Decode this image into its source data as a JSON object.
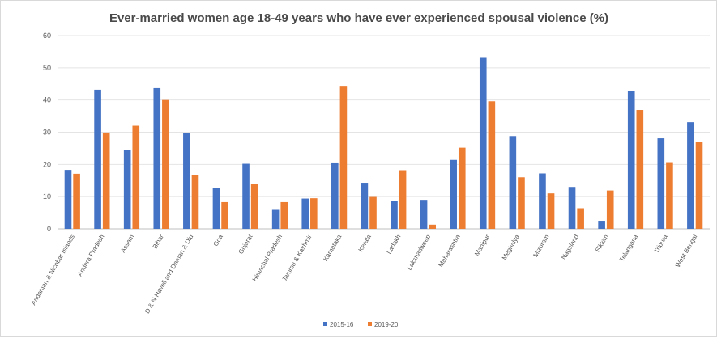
{
  "chart_data": {
    "type": "bar",
    "title": "Ever-married  women age 18-49 years who have ever experienced spousal  violence  (%)",
    "xlabel": "",
    "ylabel": "",
    "ylim": [
      0,
      60
    ],
    "yticks": [
      "0",
      "10",
      "20",
      "30",
      "40",
      "50",
      "60"
    ],
    "grid": true,
    "legend_position": "bottom",
    "categories": [
      "Andaman & Nicobar Islands",
      "Andhra Pradesh",
      "Assam",
      "Bihar",
      "D & N Haveli and Daman & Diu",
      "Goa",
      "Gujarat",
      "Himachal Pradesh",
      "Jammu & Kashmir",
      "Karnataka",
      "Kerala",
      "Ladakh",
      "Lakshadweep",
      "Maharashtra",
      "Manipur",
      "Meghalya",
      "Mizoram",
      "Nagaland",
      "Sikkim",
      "Telangana",
      "Tripura",
      "West Bengal"
    ],
    "series": [
      {
        "name": "2015-16",
        "color": "#4472c4",
        "values": [
          18.3,
          43.2,
          24.5,
          43.7,
          29.8,
          12.8,
          20.2,
          5.9,
          9.4,
          20.6,
          14.3,
          8.6,
          9.0,
          21.4,
          53.1,
          28.8,
          17.2,
          13.0,
          2.5,
          42.9,
          28.1,
          33.1
        ]
      },
      {
        "name": "2019-20",
        "color": "#ed7d31",
        "values": [
          17.1,
          29.9,
          32.0,
          40.0,
          16.7,
          8.3,
          14.0,
          8.3,
          9.5,
          44.4,
          9.9,
          18.2,
          1.3,
          25.2,
          39.6,
          16.0,
          11.0,
          6.4,
          11.9,
          36.9,
          20.7,
          27.0
        ]
      }
    ]
  }
}
